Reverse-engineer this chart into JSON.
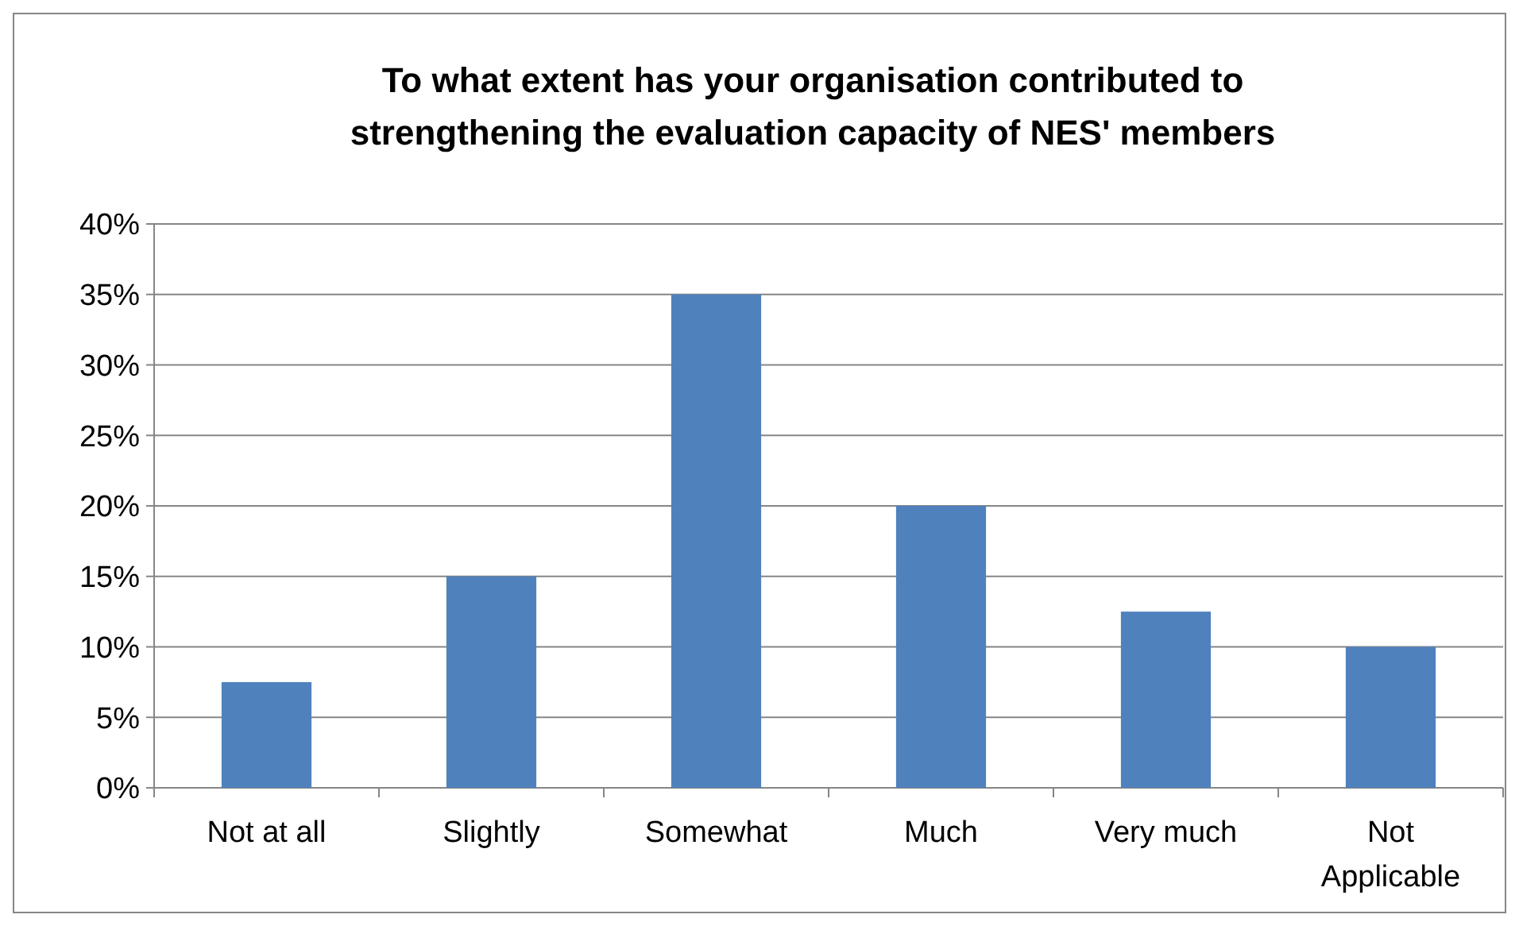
{
  "chart_data": {
    "type": "bar",
    "title": "To what extent has your organisation contributed to strengthening the evaluation capacity of NES' members",
    "categories": [
      "Not at all",
      "Slightly",
      "Somewhat",
      "Much",
      "Very much",
      "Not Applicable"
    ],
    "values": [
      7.5,
      15,
      35,
      20,
      12.5,
      10
    ],
    "color": "#4f81bd",
    "ylim": [
      0,
      40
    ],
    "yticks": [
      {
        "value": 0,
        "label": "0%"
      },
      {
        "value": 5,
        "label": "5%"
      },
      {
        "value": 10,
        "label": "10%"
      },
      {
        "value": 15,
        "label": "15%"
      },
      {
        "value": 20,
        "label": "20%"
      },
      {
        "value": 25,
        "label": "25%"
      },
      {
        "value": 30,
        "label": "30%"
      },
      {
        "value": 35,
        "label": "35%"
      },
      {
        "value": 40,
        "label": "40%"
      }
    ],
    "grid": "y"
  }
}
